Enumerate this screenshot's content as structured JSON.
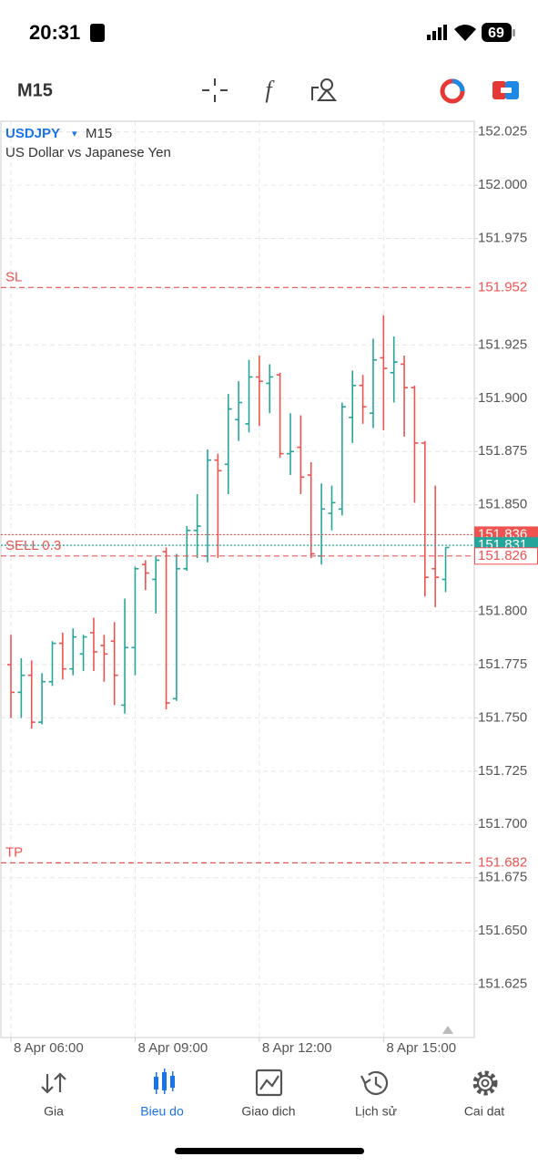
{
  "status_bar": {
    "time": "20:31",
    "battery": "69"
  },
  "toolbar": {
    "timeframe": "M15"
  },
  "chart_data": {
    "type": "ohlc",
    "symbol": "USDJPY",
    "symbol_menu": "▾",
    "timeframe": "M15",
    "description": "US Dollar vs Japanese Yen",
    "up_color": "#26a69a",
    "down_color": "#ef5350",
    "categories": [
      "8 Apr 06:00",
      null,
      null,
      null,
      null,
      null,
      null,
      null,
      null,
      null,
      null,
      null,
      "8 Apr 09:00",
      null,
      null,
      null,
      null,
      null,
      null,
      null,
      null,
      null,
      null,
      null,
      "8 Apr 12:00",
      null,
      null,
      null,
      null,
      null,
      null,
      null,
      null,
      null,
      null,
      null,
      "8 Apr 15:00",
      null,
      null,
      null,
      null,
      null,
      null
    ],
    "open": [
      151.775,
      151.762,
      151.77,
      151.748,
      151.767,
      151.785,
      151.773,
      151.78,
      151.79,
      151.784,
      151.786,
      151.756,
      151.783,
      151.822,
      151.815,
      151.828,
      151.759,
      151.82,
      151.838,
      151.826,
      151.871,
      151.869,
      151.89,
      151.888,
      151.91,
      151.907,
      151.911,
      151.874,
      151.877,
      151.864,
      151.826,
      151.846,
      151.848,
      151.891,
      151.906,
      151.893,
      151.919,
      151.912,
      151.916,
      151.905,
      151.879,
      151.82,
      151.815
    ],
    "high": [
      151.789,
      151.778,
      151.777,
      151.771,
      151.786,
      151.79,
      151.792,
      151.789,
      151.797,
      151.789,
      151.795,
      151.806,
      151.821,
      151.824,
      151.826,
      151.83,
      151.827,
      151.84,
      151.855,
      151.876,
      151.874,
      151.902,
      151.908,
      151.918,
      151.92,
      151.916,
      151.912,
      151.893,
      151.892,
      151.87,
      151.86,
      151.859,
      151.898,
      151.913,
      151.911,
      151.928,
      151.939,
      151.929,
      151.92,
      151.906,
      151.88,
      151.859,
      151.83
    ],
    "low": [
      151.75,
      151.75,
      151.745,
      151.747,
      151.765,
      151.768,
      151.77,
      151.772,
      151.772,
      151.767,
      151.756,
      151.752,
      151.77,
      151.81,
      151.799,
      151.754,
      151.758,
      151.819,
      151.825,
      151.823,
      151.825,
      151.855,
      151.88,
      151.884,
      151.887,
      151.893,
      151.872,
      151.864,
      151.855,
      151.825,
      151.822,
      151.838,
      151.845,
      151.879,
      151.888,
      151.886,
      151.885,
      151.898,
      151.882,
      151.851,
      151.807,
      151.802,
      151.809
    ],
    "close": [
      151.762,
      151.77,
      151.748,
      151.767,
      151.785,
      151.773,
      151.788,
      151.788,
      151.781,
      151.78,
      151.77,
      151.783,
      151.82,
      151.818,
      151.824,
      151.757,
      151.82,
      151.838,
      151.84,
      151.871,
      151.866,
      151.895,
      151.898,
      151.91,
      151.908,
      151.91,
      151.874,
      151.875,
      151.863,
      151.827,
      151.848,
      151.851,
      151.896,
      151.906,
      151.896,
      151.918,
      151.914,
      151.917,
      151.905,
      151.879,
      151.816,
      151.816,
      151.83
    ],
    "ylim": [
      151.6,
      152.03
    ],
    "yticks": [
      152.025,
      {
        "value": 152.0,
        "label": "152.000"
      },
      151.975,
      151.925,
      {
        "value": 151.9,
        "label": "151.900"
      },
      151.875,
      {
        "value": 151.85,
        "label": "151.850"
      },
      {
        "value": 151.8,
        "label": "151.800"
      },
      151.775,
      {
        "value": 151.75,
        "label": "151.750"
      },
      151.725,
      {
        "value": 151.7,
        "label": "151.700"
      },
      151.675,
      {
        "value": 151.65,
        "label": "151.650"
      },
      151.625
    ],
    "grid": true,
    "lines": [
      {
        "label": "SL",
        "value": 151.952,
        "color": "#ef5350",
        "style": "dashed",
        "box": "text"
      },
      {
        "value": 151.836,
        "color": "#ef5350",
        "style": "dotted",
        "box": "filled"
      },
      {
        "value": 151.831,
        "color": "#26a69a",
        "style": "dotted",
        "box": "filled"
      },
      {
        "label": "SELL 0.3",
        "value": 151.826,
        "color": "#ef5350",
        "style": "dashed",
        "box": "outline"
      },
      {
        "label": "TP",
        "value": 151.682,
        "color": "#ef5350",
        "style": "dashed",
        "box": "text"
      }
    ]
  },
  "nav": {
    "items": [
      "Gia",
      "Bieu do",
      "Giao dich",
      "Lịch sử",
      "Cai dat"
    ],
    "active": 1
  }
}
